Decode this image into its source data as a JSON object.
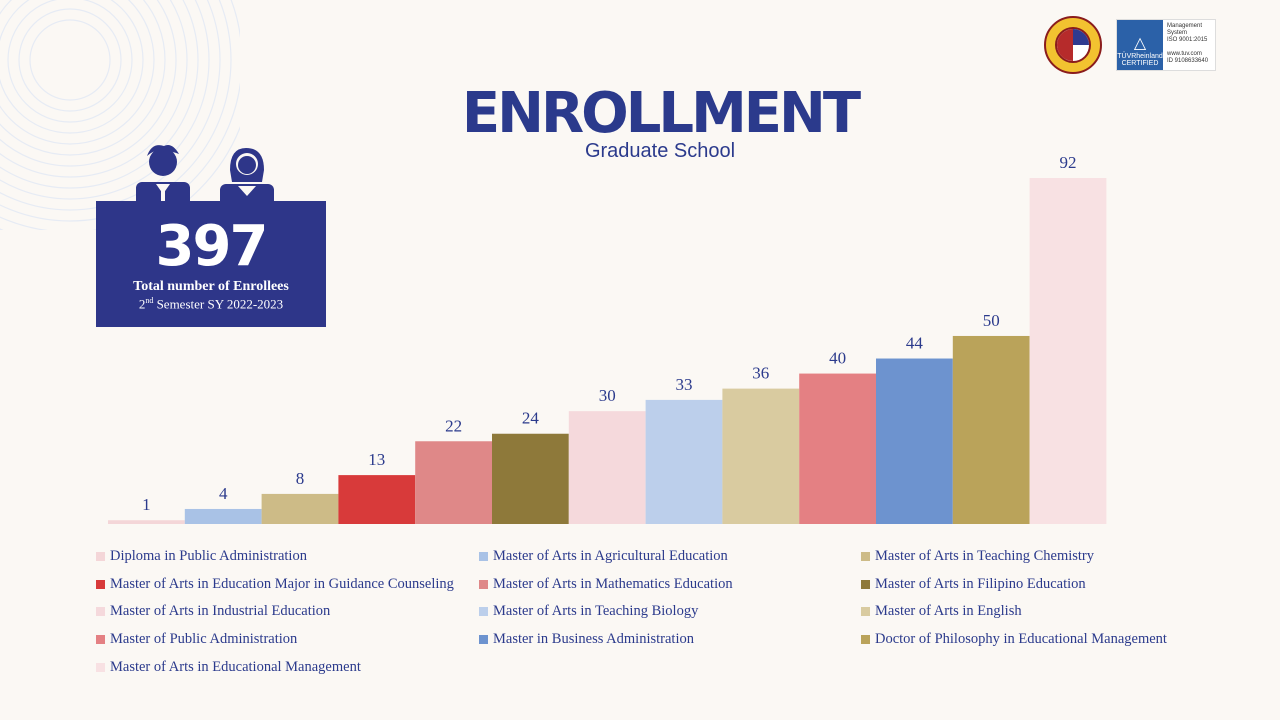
{
  "header": {
    "title": "ENROLLMENT",
    "subtitle": "Graduate School"
  },
  "logos": {
    "seal_icon": "university-seal",
    "cert_icon": "tuv-rheinland-certified",
    "cert_badge_text": "TÜVRheinland",
    "cert_badge_sub": "CERTIFIED",
    "cert_text": "Management\nSystem\nISO 9001:2015\n\nwww.tuv.com\nID 9108633640"
  },
  "summary": {
    "total": "397",
    "label": "Total number of Enrollees",
    "semester_ordinal": "2",
    "semester_suffix": "nd",
    "semester_rest": " Semester SY 2022-2023",
    "icons": [
      "male-student-icon",
      "female-student-icon"
    ]
  },
  "chart_data": {
    "type": "bar",
    "title": "ENROLLMENT",
    "subtitle": "Graduate School",
    "xlabel": "",
    "ylabel": "",
    "ylim": [
      0,
      92
    ],
    "grid": false,
    "legend_position": "bottom",
    "categories": [
      "Diploma in Public Administration",
      "Master of Arts in Agricultural Education",
      "Master of Arts in Teaching Chemistry",
      "Master of Arts in Education Major in Guidance Counseling",
      "Master of Arts in Mathematics Education",
      "Master of Arts in Filipino Education",
      "Master of Arts in Industrial Education",
      "Master of Arts in Teaching Biology",
      "Master of Arts in English",
      "Master of Public Administration",
      "Master in Business Administration",
      "Doctor of Philosophy in Educational Management",
      "Master of Arts in Educational Management"
    ],
    "values": [
      1,
      4,
      8,
      13,
      22,
      24,
      30,
      33,
      36,
      40,
      44,
      50,
      92
    ],
    "colors": [
      "#f4d6d8",
      "#a9c2e6",
      "#cdbb87",
      "#d83a3a",
      "#df8888",
      "#8e793a",
      "#f5d9dc",
      "#bccfeb",
      "#d9cba0",
      "#e48083",
      "#6d93cf",
      "#baa35a",
      "#f8e1e3"
    ]
  }
}
